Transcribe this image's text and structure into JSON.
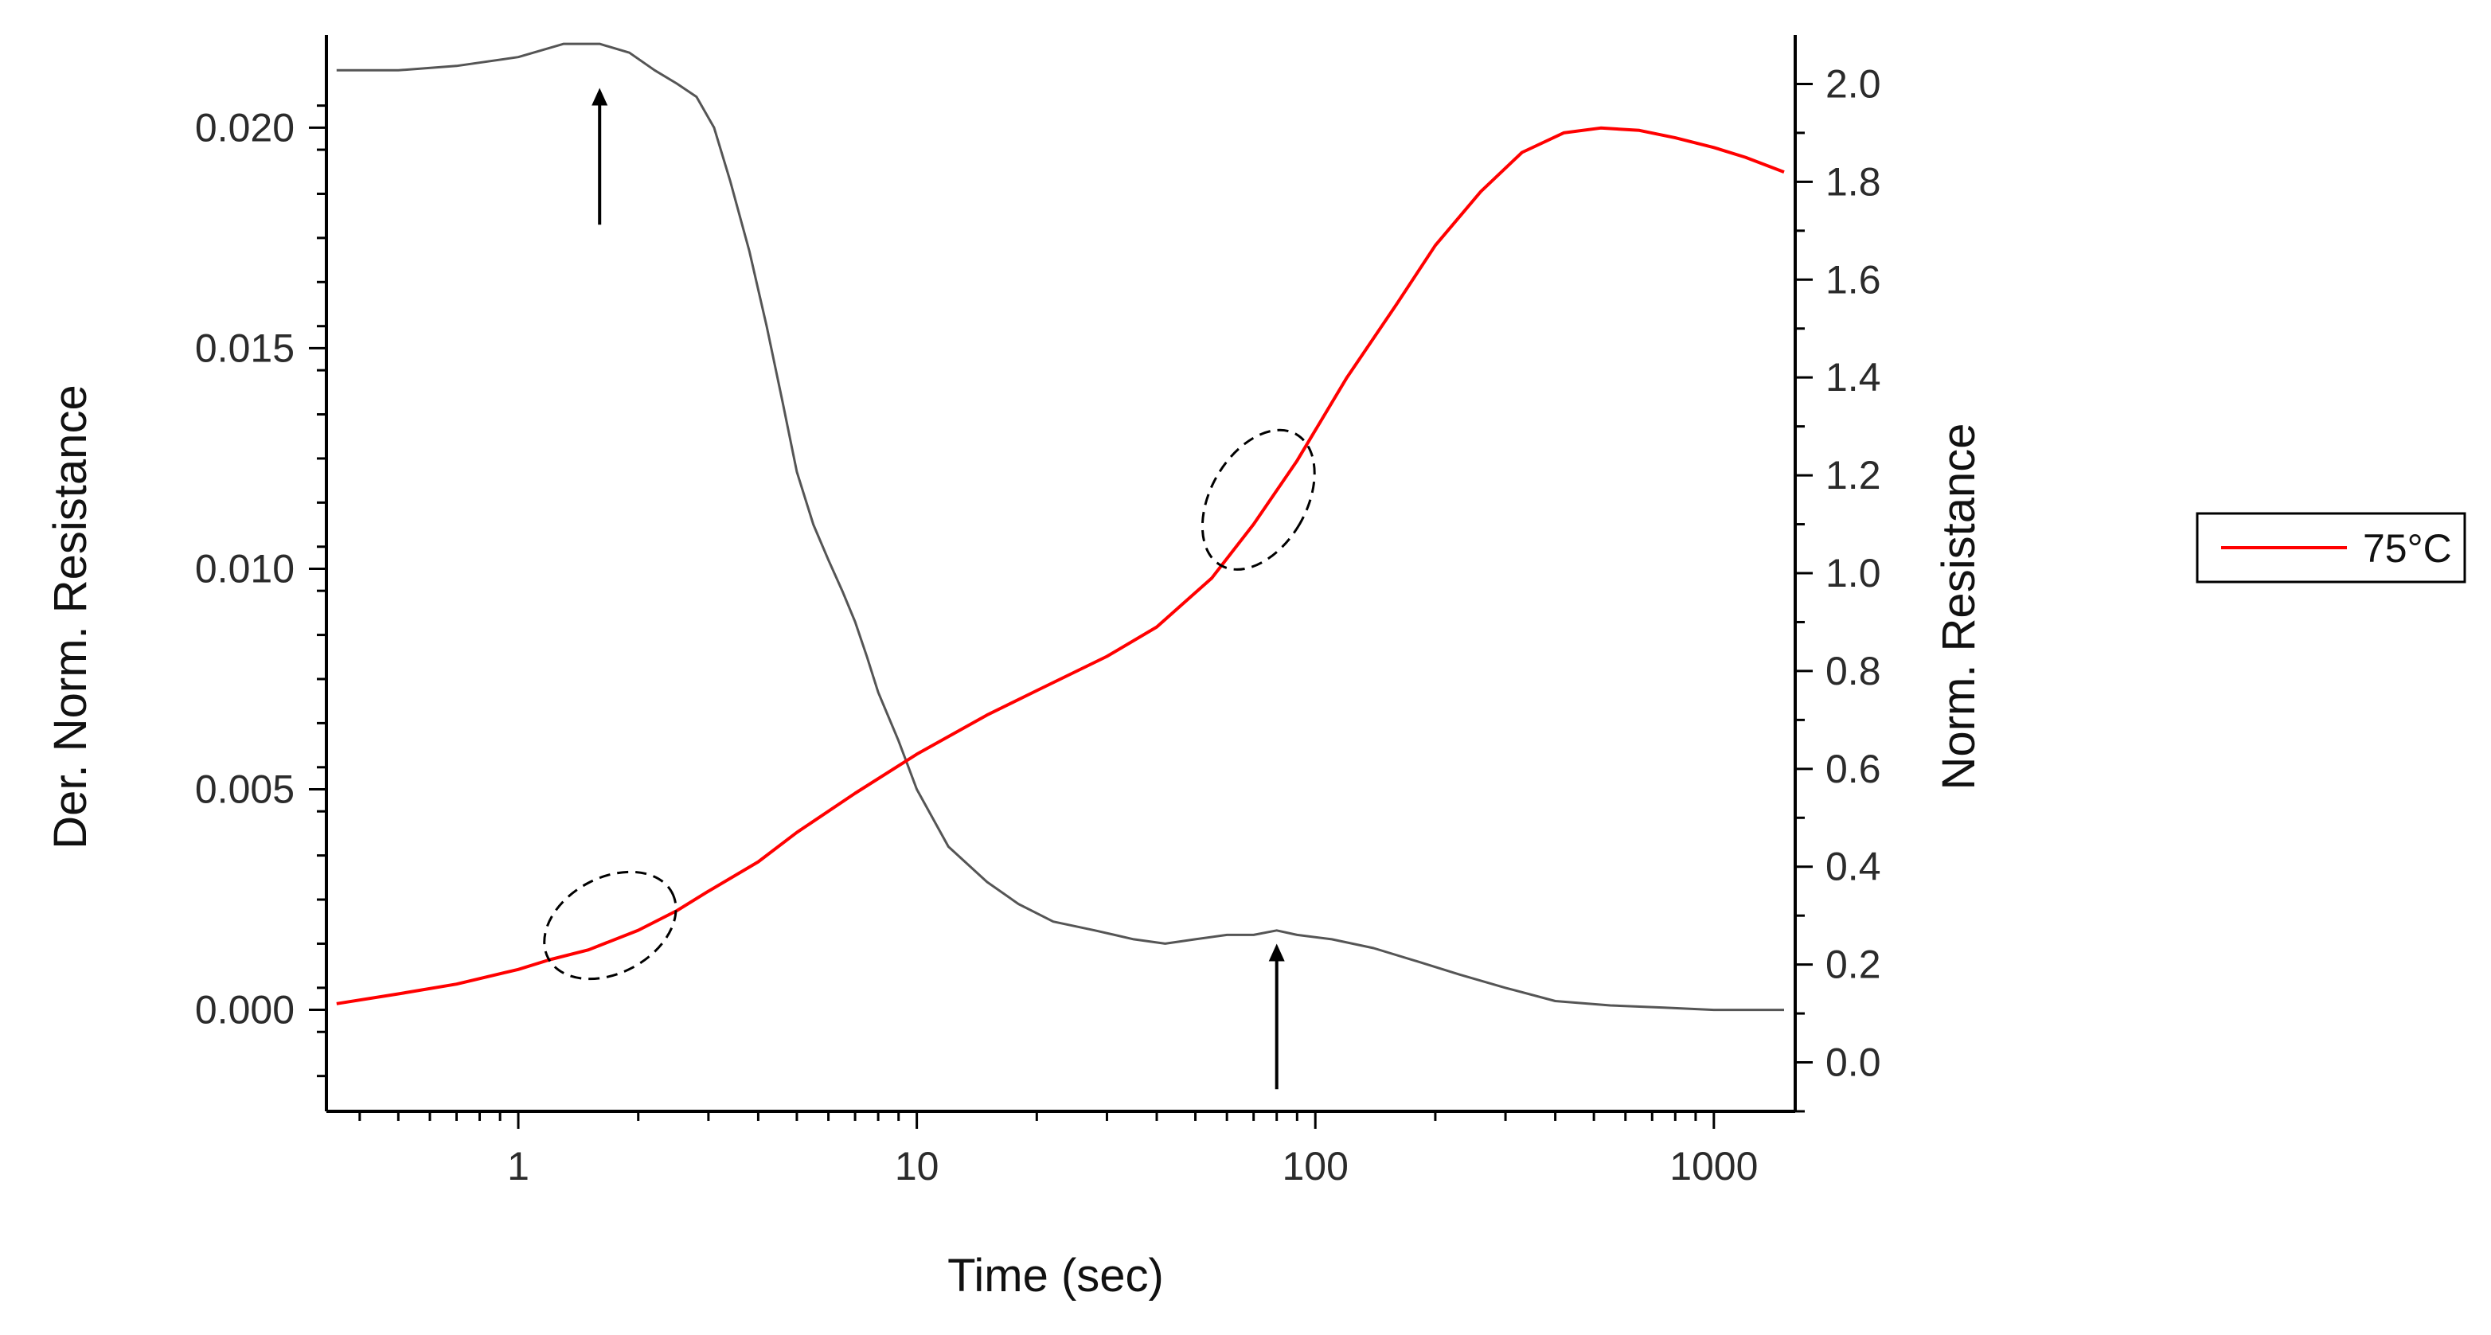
{
  "chart_data": {
    "type": "line",
    "title": "",
    "xlabel": "Time (sec)",
    "ylabel_left": "Der. Norm. Resistance",
    "ylabel_right": "Norm. Resistance",
    "xscale": "log",
    "xlim": [
      0.33,
      1600
    ],
    "ylim_left": [
      -0.0023,
      0.0221
    ],
    "ylim_right": [
      -0.1,
      2.1
    ],
    "x_ticks": [
      {
        "value": 1,
        "label": "1"
      },
      {
        "value": 10,
        "label": "10"
      },
      {
        "value": 100,
        "label": "100"
      },
      {
        "value": 1000,
        "label": "1000"
      }
    ],
    "y_ticks_left": [
      {
        "value": 0.0,
        "label": "0.000"
      },
      {
        "value": 0.005,
        "label": "0.005"
      },
      {
        "value": 0.01,
        "label": "0.010"
      },
      {
        "value": 0.015,
        "label": "0.015"
      },
      {
        "value": 0.02,
        "label": "0.020"
      }
    ],
    "y_ticks_right": [
      {
        "value": 0.0,
        "label": "0.0"
      },
      {
        "value": 0.2,
        "label": "0.2"
      },
      {
        "value": 0.4,
        "label": "0.4"
      },
      {
        "value": 0.6,
        "label": "0.6"
      },
      {
        "value": 0.8,
        "label": "0.8"
      },
      {
        "value": 1.0,
        "label": "1.0"
      },
      {
        "value": 1.2,
        "label": "1.2"
      },
      {
        "value": 1.4,
        "label": "1.4"
      },
      {
        "value": 1.6,
        "label": "1.6"
      },
      {
        "value": 1.8,
        "label": "1.8"
      },
      {
        "value": 2.0,
        "label": "2.0"
      }
    ],
    "legend": {
      "position": "right",
      "entries": [
        {
          "name": "75°C",
          "color": "#ff0000"
        }
      ]
    },
    "series": [
      {
        "name": "Der. Norm. Resistance",
        "axis": "left",
        "color": "#555555",
        "x": [
          0.35,
          0.5,
          0.7,
          1.0,
          1.3,
          1.6,
          1.9,
          2.2,
          2.5,
          2.8,
          3.1,
          3.4,
          3.8,
          4.2,
          4.6,
          5.0,
          5.5,
          6.0,
          6.5,
          7.0,
          7.5,
          8.0,
          9.0,
          10,
          12,
          15,
          18,
          22,
          28,
          35,
          42,
          50,
          60,
          70,
          80,
          90,
          110,
          140,
          180,
          230,
          300,
          400,
          550,
          750,
          1000,
          1500
        ],
        "y": [
          0.0213,
          0.0213,
          0.0214,
          0.0216,
          0.0219,
          0.0219,
          0.0217,
          0.0213,
          0.021,
          0.0207,
          0.02,
          0.0188,
          0.0172,
          0.0155,
          0.0138,
          0.0122,
          0.011,
          0.0102,
          0.0095,
          0.0088,
          0.008,
          0.0072,
          0.0061,
          0.005,
          0.0037,
          0.0029,
          0.0024,
          0.002,
          0.0018,
          0.0016,
          0.0015,
          0.0016,
          0.0017,
          0.0017,
          0.0018,
          0.0017,
          0.0016,
          0.0014,
          0.0011,
          0.0008,
          0.0005,
          0.0002,
          0.0001,
          5e-05,
          0.0,
          0.0
        ]
      },
      {
        "name": "75°C",
        "axis": "right",
        "color": "#ff0000",
        "x": [
          0.35,
          0.5,
          0.7,
          1.0,
          1.2,
          1.5,
          2.0,
          2.5,
          3.0,
          4.0,
          5.0,
          7.0,
          10,
          15,
          20,
          30,
          40,
          55,
          70,
          90,
          120,
          160,
          200,
          260,
          330,
          420,
          520,
          650,
          800,
          1000,
          1200,
          1500
        ],
        "y": [
          0.12,
          0.14,
          0.16,
          0.19,
          0.21,
          0.23,
          0.27,
          0.31,
          0.35,
          0.41,
          0.47,
          0.55,
          0.63,
          0.71,
          0.76,
          0.83,
          0.89,
          0.99,
          1.1,
          1.23,
          1.4,
          1.55,
          1.67,
          1.78,
          1.86,
          1.9,
          1.91,
          1.905,
          1.89,
          1.87,
          1.85,
          1.82
        ]
      }
    ],
    "annotations": [
      {
        "type": "arrow",
        "x": 1.6,
        "axis": "left",
        "y_from": 0.0178,
        "y_to": 0.0209,
        "description": "peak of derivative"
      },
      {
        "type": "arrow",
        "x": 80,
        "axis": "left",
        "y_from": -0.0018,
        "y_to": 0.0015,
        "description": "second peak of derivative"
      },
      {
        "type": "ellipse",
        "x_center": 1.7,
        "axis": "right",
        "y_center": 0.28,
        "label": "dashed region on red curve"
      },
      {
        "type": "ellipse",
        "x_center": 72,
        "axis": "right",
        "y_center": 1.15,
        "label": "dashed region on red curve"
      }
    ]
  }
}
